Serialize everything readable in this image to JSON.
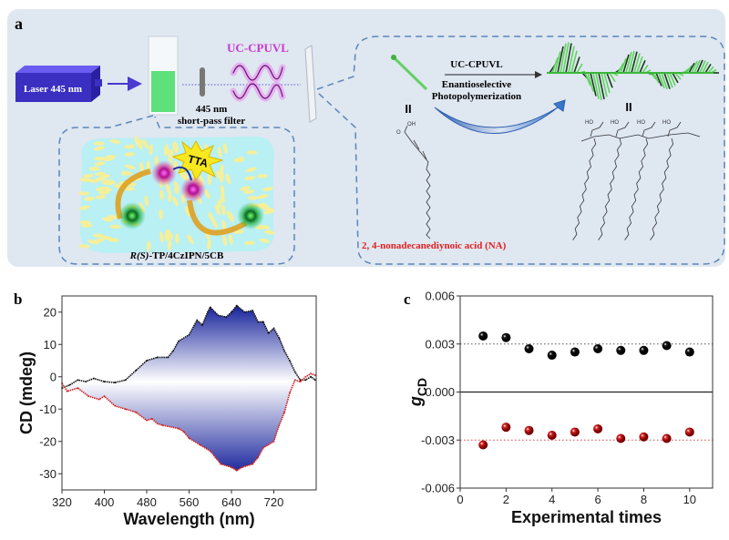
{
  "panel_a": {
    "label": "a",
    "laser_label": "Laser 445 nm",
    "light_label": "UC-CPUVL",
    "filter_line1": "445 nm",
    "filter_line2": "short-pass filter",
    "tta_label": "TTA",
    "system_label_italic": "R(S)",
    "system_label_rest": "-TP/4CzIPN/5CB",
    "reaction_top": "UC-CPUVL",
    "reaction_line1": "Enantioselective",
    "reaction_line2": "Photopolymerization",
    "monomer_equiv": "II",
    "polymer_equiv": "II",
    "oh_label": "OH",
    "o_label": "O",
    "ho_label": "HO",
    "monomer_name": "2, 4-nonadecanediynoic acid (NA)",
    "colors": {
      "laser": "#3a2fc0",
      "light": "#c838d0",
      "monomer_name": "#e02020",
      "panel_bg": "#dfe7f1",
      "helix": "#5ed35e"
    }
  },
  "chart_data": [
    {
      "panel_label": "b",
      "type": "line",
      "xlabel": "Wavelength (nm)",
      "ylabel": "CD (mdeg)",
      "xlim": [
        320,
        800
      ],
      "ylim": [
        -35,
        25
      ],
      "xticks": [
        "320",
        "400",
        "480",
        "560",
        "640",
        "720"
      ],
      "yticks": [
        "20",
        "10",
        "0",
        "-10",
        "-20",
        "-30"
      ],
      "grid": false,
      "fill_between": "blue gradient",
      "series": [
        {
          "color": "#111111",
          "x": [
            320,
            335,
            350,
            365,
            380,
            400,
            420,
            440,
            460,
            480,
            500,
            520,
            530,
            540,
            560,
            575,
            585,
            595,
            600,
            615,
            630,
            640,
            650,
            665,
            680,
            690,
            700,
            710,
            720,
            730,
            740,
            750,
            760,
            770,
            780,
            790,
            798
          ],
          "y": [
            -3.5,
            -2.5,
            -1,
            -1.5,
            -0.5,
            -1.5,
            -1.8,
            -1,
            2,
            5,
            6,
            6,
            8,
            11,
            13,
            17.5,
            16,
            20,
            21.5,
            19,
            18.5,
            20,
            22,
            20,
            20.5,
            17,
            17,
            13.5,
            15,
            12,
            8,
            5,
            1.5,
            -1,
            -1,
            0,
            -1
          ]
        },
        {
          "color": "#d42020",
          "x": [
            320,
            330,
            350,
            370,
            390,
            400,
            420,
            440,
            460,
            480,
            490,
            500,
            510,
            540,
            550,
            560,
            580,
            600,
            610,
            620,
            640,
            650,
            660,
            680,
            690,
            700,
            710,
            720,
            730,
            740,
            750,
            760,
            770,
            780,
            790,
            798
          ],
          "y": [
            -2,
            -4.5,
            -3.5,
            -6,
            -7,
            -6,
            -9,
            -10,
            -11,
            -13.5,
            -13,
            -14.5,
            -15,
            -16,
            -17,
            -19,
            -21,
            -23,
            -25,
            -27,
            -28,
            -29,
            -28,
            -27,
            -25,
            -22,
            -21,
            -20,
            -15,
            -11,
            -5,
            -1,
            -1.5,
            0,
            1,
            0.5
          ]
        }
      ]
    },
    {
      "panel_label": "c",
      "type": "scatter",
      "xlabel": "Experimental times",
      "ylabel": "g",
      "ylabel_sub": "CD",
      "xlim": [
        0,
        11
      ],
      "ylim": [
        -0.006,
        0.006
      ],
      "xticks": [
        "0",
        "2",
        "4",
        "6",
        "8",
        "10"
      ],
      "yticks": [
        "0.006",
        "0.003",
        "0.000",
        "-0.003",
        "-0.006"
      ],
      "grid": false,
      "reference_lines": [
        {
          "y": 0.003,
          "color": "#555555"
        },
        {
          "y": -0.003,
          "color": "#d84040"
        },
        {
          "y": 0,
          "color": "#222222"
        }
      ],
      "series": [
        {
          "color": "#111111",
          "x": [
            1,
            2,
            3,
            4,
            5,
            6,
            7,
            8,
            9,
            10
          ],
          "y": [
            0.0035,
            0.0034,
            0.0027,
            0.0023,
            0.0025,
            0.0027,
            0.0026,
            0.0026,
            0.0029,
            0.0025
          ]
        },
        {
          "color": "#d42020",
          "x": [
            1,
            2,
            3,
            4,
            5,
            6,
            7,
            8,
            9,
            10
          ],
          "y": [
            -0.0033,
            -0.0022,
            -0.0024,
            -0.0027,
            -0.0025,
            -0.0023,
            -0.0029,
            -0.0028,
            -0.0029,
            -0.0025
          ]
        }
      ]
    }
  ]
}
